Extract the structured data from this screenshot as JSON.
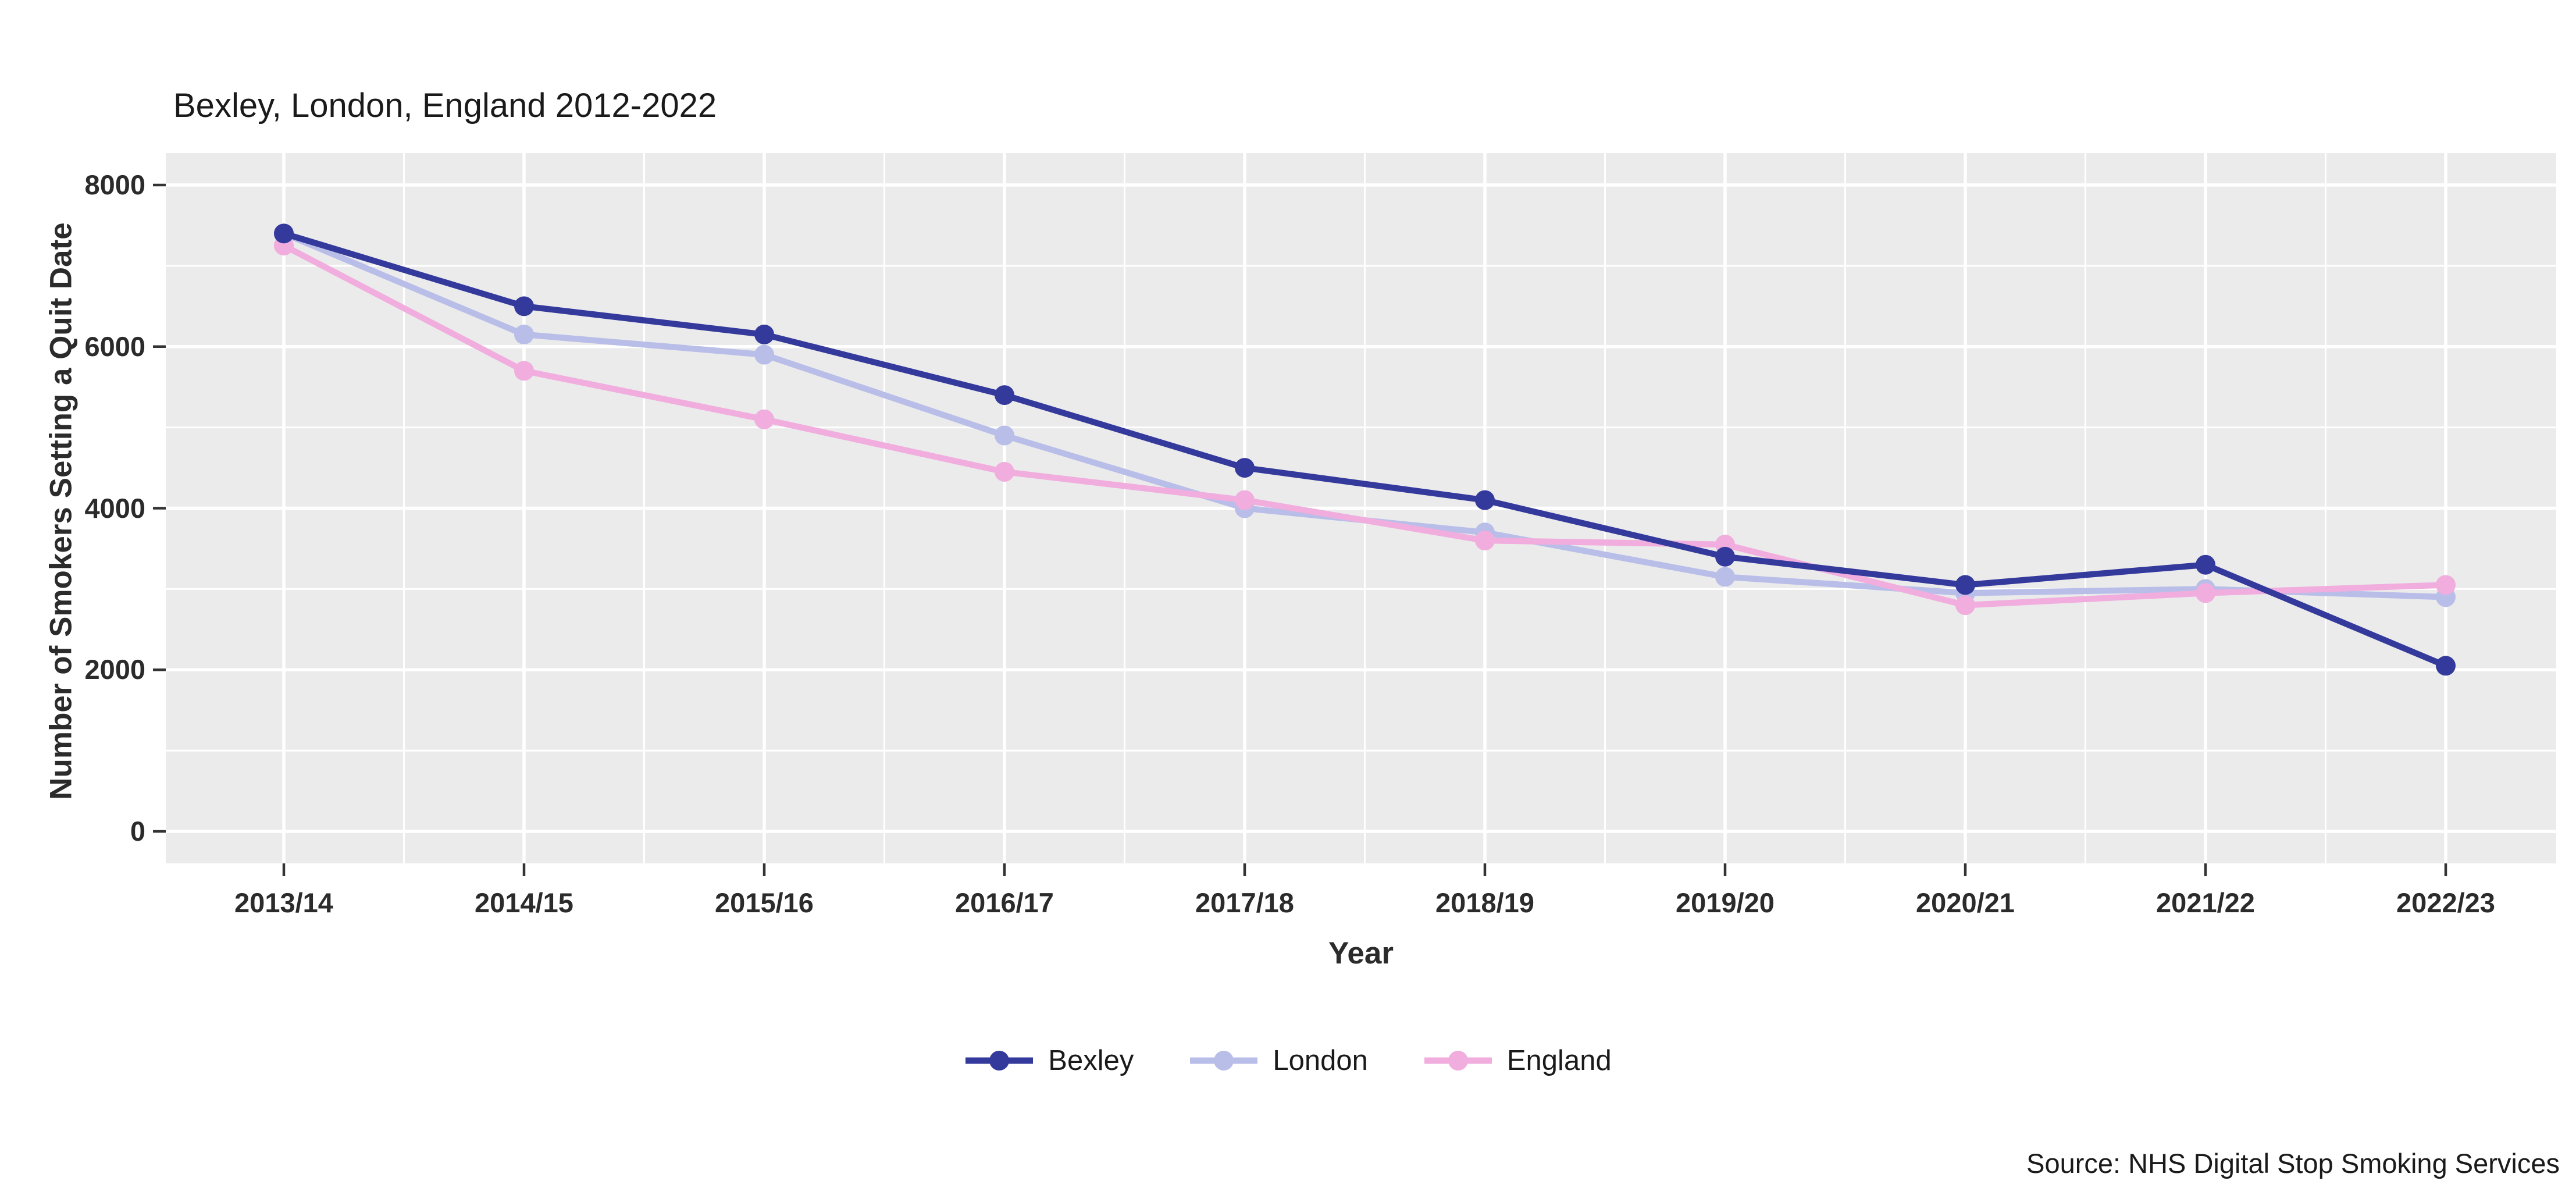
{
  "title": "Bexley, London, England 2012-2022",
  "source_note": "Source: NHS Digital Stop Smoking Services",
  "chart_data": {
    "type": "line",
    "title": "Bexley, London, England 2012-2022",
    "xlabel": "Year",
    "ylabel": "Number of Smokers Setting a Quit Date",
    "categories": [
      "2013/14",
      "2014/15",
      "2015/16",
      "2016/17",
      "2017/18",
      "2018/19",
      "2019/20",
      "2020/21",
      "2021/22",
      "2022/23"
    ],
    "series": [
      {
        "name": "Bexley",
        "color": "#34399C",
        "values": [
          7400,
          6500,
          6150,
          5400,
          4500,
          4100,
          3400,
          3050,
          3300,
          2050
        ]
      },
      {
        "name": "London",
        "color": "#B9BEE9",
        "values": [
          7400,
          6150,
          5900,
          4900,
          4000,
          3700,
          3150,
          2950,
          3000,
          2900
        ]
      },
      {
        "name": "England",
        "color": "#F0ADDE",
        "values": [
          7250,
          5700,
          5100,
          4450,
          4100,
          3600,
          3550,
          2800,
          2950,
          3050
        ]
      }
    ],
    "draw_order": [
      1,
      2,
      0
    ],
    "yticks": [
      0,
      2000,
      4000,
      6000,
      8000
    ],
    "yminor": [
      1000,
      3000,
      5000,
      7000
    ],
    "ylim": [
      0,
      8000
    ],
    "grid": true,
    "legend_position": "bottom",
    "panel_bg": "#EBEBEB",
    "grid_color": "#FFFFFF",
    "tick_color": "#333333"
  }
}
